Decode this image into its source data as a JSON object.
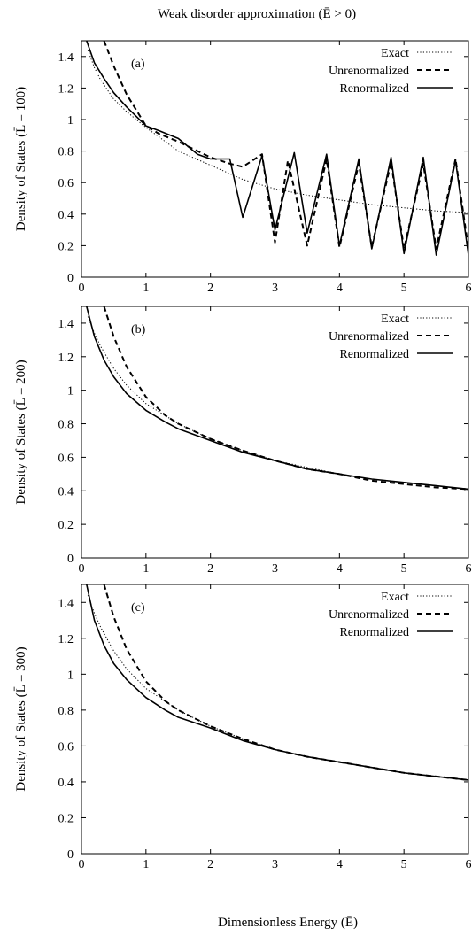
{
  "figure": {
    "title": "Weak disorder approximation (Ē > 0)",
    "xlabel": "Dimensionless Energy (Ē)"
  },
  "legend_style": {
    "Exact": "dotted",
    "Unrenormalized": "dashed",
    "Renormalized": "solid"
  },
  "chart_data": [
    {
      "type": "line",
      "panel_label": "(a)",
      "ylabel": "Density of States (L̄ = 100)",
      "xlim": [
        0,
        6
      ],
      "ylim": [
        0,
        1.5
      ],
      "xticks": [
        "0",
        "1",
        "2",
        "3",
        "4",
        "5",
        "6"
      ],
      "yticks": [
        "0",
        "0.2",
        "0.4",
        "0.6",
        "0.8",
        "1",
        "1.2",
        "1.4"
      ],
      "legend_position": "top-right",
      "series": [
        {
          "name": "Exact",
          "x": [
            0.1,
            0.2,
            0.3,
            0.5,
            0.7,
            1.0,
            1.5,
            2.0,
            2.5,
            3.0,
            3.5,
            4.0,
            4.5,
            5.0,
            5.5,
            6.0
          ],
          "y": [
            1.44,
            1.33,
            1.25,
            1.13,
            1.05,
            0.95,
            0.8,
            0.71,
            0.62,
            0.56,
            0.52,
            0.49,
            0.46,
            0.44,
            0.42,
            0.41
          ]
        },
        {
          "name": "Unrenormalized",
          "x": [
            0.35,
            0.5,
            0.7,
            1.0,
            1.2,
            1.5,
            1.8,
            2.0,
            2.3,
            2.5,
            2.8,
            3.0,
            3.2,
            3.5,
            3.8,
            4.0,
            4.3,
            4.5,
            4.8,
            5.0,
            5.3,
            5.5,
            5.8,
            6.0
          ],
          "y": [
            1.5,
            1.34,
            1.16,
            0.96,
            0.91,
            0.86,
            0.8,
            0.76,
            0.72,
            0.7,
            0.78,
            0.22,
            0.74,
            0.2,
            0.75,
            0.19,
            0.72,
            0.19,
            0.73,
            0.18,
            0.72,
            0.18,
            0.75,
            0.18
          ]
        },
        {
          "name": "Renormalized",
          "x": [
            0.08,
            0.2,
            0.35,
            0.5,
            0.7,
            1.0,
            1.2,
            1.5,
            1.8,
            2.0,
            2.3,
            2.5,
            2.8,
            3.0,
            3.3,
            3.5,
            3.8,
            4.0,
            4.3,
            4.5,
            4.8,
            5.0,
            5.3,
            5.5,
            5.8,
            6.0
          ],
          "y": [
            1.5,
            1.36,
            1.26,
            1.17,
            1.08,
            0.96,
            0.93,
            0.88,
            0.78,
            0.75,
            0.75,
            0.38,
            0.77,
            0.3,
            0.79,
            0.28,
            0.78,
            0.2,
            0.75,
            0.18,
            0.76,
            0.15,
            0.76,
            0.14,
            0.74,
            0.14
          ]
        }
      ]
    },
    {
      "type": "line",
      "panel_label": "(b)",
      "ylabel": "Density of States (L̄ = 200)",
      "xlim": [
        0,
        6
      ],
      "ylim": [
        0,
        1.5
      ],
      "xticks": [
        "0",
        "1",
        "2",
        "3",
        "4",
        "5",
        "6"
      ],
      "yticks": [
        "0",
        "0.2",
        "0.4",
        "0.6",
        "0.8",
        "1",
        "1.2",
        "1.4"
      ],
      "legend_position": "top-right",
      "series": [
        {
          "name": "Exact",
          "x": [
            0.1,
            0.2,
            0.3,
            0.5,
            0.7,
            1.0,
            1.5,
            2.0,
            2.5,
            3.0,
            3.5,
            4.0,
            4.5,
            5.0,
            5.5,
            6.0
          ],
          "y": [
            1.44,
            1.34,
            1.26,
            1.13,
            1.03,
            0.92,
            0.8,
            0.71,
            0.64,
            0.58,
            0.54,
            0.5,
            0.47,
            0.45,
            0.43,
            0.41
          ]
        },
        {
          "name": "Unrenormalized",
          "x": [
            0.35,
            0.5,
            0.7,
            1.0,
            1.3,
            1.5,
            2.0,
            2.5,
            3.0,
            3.5,
            4.0,
            4.5,
            5.0,
            5.5,
            6.0
          ],
          "y": [
            1.5,
            1.32,
            1.14,
            0.96,
            0.85,
            0.8,
            0.71,
            0.64,
            0.58,
            0.53,
            0.5,
            0.46,
            0.44,
            0.42,
            0.41
          ]
        },
        {
          "name": "Renormalized",
          "x": [
            0.08,
            0.2,
            0.35,
            0.5,
            0.7,
            1.0,
            1.3,
            1.5,
            2.0,
            2.5,
            3.0,
            3.5,
            4.0,
            4.5,
            5.0,
            5.5,
            6.0
          ],
          "y": [
            1.5,
            1.32,
            1.18,
            1.08,
            0.98,
            0.88,
            0.81,
            0.77,
            0.7,
            0.63,
            0.58,
            0.53,
            0.5,
            0.47,
            0.45,
            0.43,
            0.41
          ]
        }
      ]
    },
    {
      "type": "line",
      "panel_label": "(c)",
      "ylabel": "Density of States (L̄ = 300)",
      "xlim": [
        0,
        6
      ],
      "ylim": [
        0,
        1.5
      ],
      "xticks": [
        "0",
        "1",
        "2",
        "3",
        "4",
        "5",
        "6"
      ],
      "yticks": [
        "0",
        "0.2",
        "0.4",
        "0.6",
        "0.8",
        "1",
        "1.2",
        "1.4"
      ],
      "legend_position": "top-right",
      "series": [
        {
          "name": "Exact",
          "x": [
            0.1,
            0.2,
            0.3,
            0.5,
            0.7,
            1.0,
            1.5,
            2.0,
            2.5,
            3.0,
            3.5,
            4.0,
            4.5,
            5.0,
            5.5,
            6.0
          ],
          "y": [
            1.44,
            1.34,
            1.26,
            1.13,
            1.03,
            0.92,
            0.8,
            0.71,
            0.64,
            0.58,
            0.54,
            0.51,
            0.48,
            0.45,
            0.43,
            0.41
          ]
        },
        {
          "name": "Unrenormalized",
          "x": [
            0.35,
            0.5,
            0.7,
            1.0,
            1.3,
            1.5,
            2.0,
            2.5,
            3.0,
            3.5,
            4.0,
            4.5,
            5.0,
            5.5,
            6.0
          ],
          "y": [
            1.5,
            1.32,
            1.14,
            0.96,
            0.85,
            0.8,
            0.71,
            0.64,
            0.58,
            0.54,
            0.51,
            0.48,
            0.45,
            0.43,
            0.41
          ]
        },
        {
          "name": "Renormalized",
          "x": [
            0.08,
            0.2,
            0.35,
            0.5,
            0.7,
            1.0,
            1.3,
            1.5,
            2.0,
            2.5,
            3.0,
            3.5,
            4.0,
            4.5,
            5.0,
            5.5,
            6.0
          ],
          "y": [
            1.5,
            1.3,
            1.16,
            1.06,
            0.97,
            0.87,
            0.8,
            0.76,
            0.7,
            0.63,
            0.58,
            0.54,
            0.51,
            0.48,
            0.45,
            0.43,
            0.41
          ]
        }
      ]
    }
  ]
}
